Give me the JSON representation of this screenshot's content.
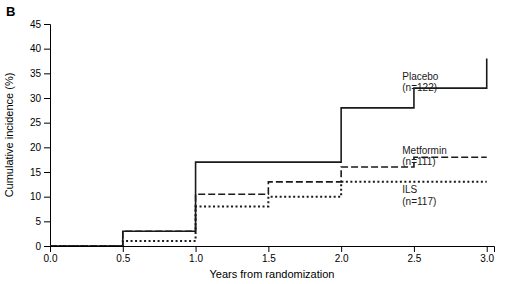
{
  "chart_data": {
    "type": "line",
    "title": "B",
    "x_label": "Years from randomization",
    "y_label": "Cumulative incidence (%)",
    "xlim": [
      0,
      3.05
    ],
    "ylim": [
      0,
      45
    ],
    "xticks": [
      {
        "value": 0,
        "label": "0.0"
      },
      0.5,
      {
        "value": 1,
        "label": "1.0"
      },
      1.5,
      {
        "value": 2,
        "label": "2.0"
      },
      2.5,
      {
        "value": 3,
        "label": "3.0"
      }
    ],
    "yticks": [
      0,
      5,
      10,
      15,
      20,
      25,
      30,
      35,
      40,
      45
    ],
    "series": [
      {
        "x": [
          0,
          0.5,
          1.0,
          2.0,
          2.5,
          3.0
        ],
        "values": [
          0,
          3,
          17,
          28,
          32,
          38
        ],
        "color": "#1a1a1a",
        "line_style": "solid"
      },
      {
        "x": [
          0,
          0.5,
          1.0,
          1.5,
          2.0,
          2.5,
          3.0
        ],
        "values": [
          0,
          3,
          10.5,
          13,
          16,
          18,
          18
        ],
        "color": "#1a1a1a",
        "line_style": "dashed"
      },
      {
        "x": [
          0,
          0.5,
          1.0,
          1.5,
          2.0,
          3.0
        ],
        "values": [
          0,
          1,
          8,
          10,
          13,
          13
        ],
        "color": "#1a1a1a",
        "line_style": "dotted"
      }
    ],
    "annotations": [
      {
        "x": 2.42,
        "y": 35.5,
        "text": "Placebo\n(n=122)"
      },
      {
        "x": 2.42,
        "y": 20.5,
        "text": "Metformin\n(n=111)"
      },
      {
        "x": 2.42,
        "y": 12.5,
        "text": "ILS\n(n=117)"
      }
    ]
  }
}
